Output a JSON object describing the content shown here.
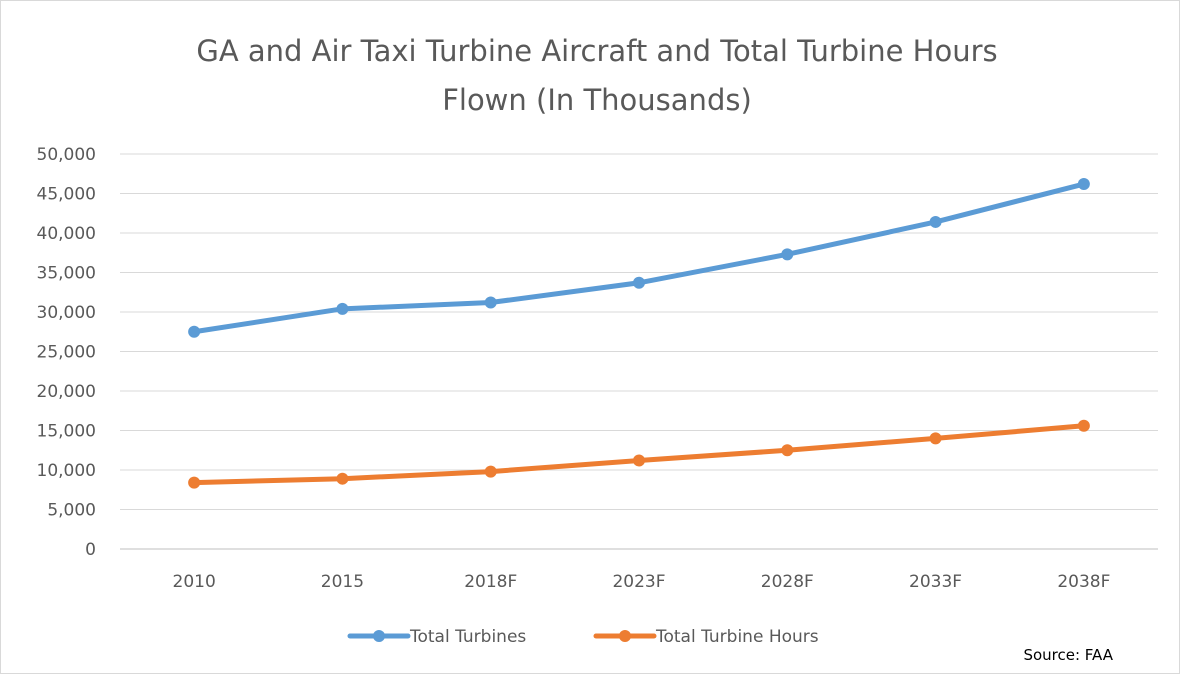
{
  "chart_data": {
    "type": "line",
    "title_lines": [
      "GA and Air Taxi Turbine Aircraft and Total Turbine Hours",
      "Flown (In Thousands)"
    ],
    "categories": [
      "2010",
      "2015",
      "2018F",
      "2023F",
      "2028F",
      "2033F",
      "2038F"
    ],
    "y_ticks": [
      "0",
      "5,000",
      "10,000",
      "15,000",
      "20,000",
      "25,000",
      "30,000",
      "35,000",
      "40,000",
      "45,000",
      "50,000"
    ],
    "ylim": [
      0,
      50000
    ],
    "grid": true,
    "legend_position": "bottom",
    "series": [
      {
        "name": "Total Turbines",
        "color": "#5b9bd5",
        "values": [
          27500,
          30400,
          31200,
          33700,
          37300,
          41400,
          46200
        ]
      },
      {
        "name": "Total Turbine Hours",
        "color": "#ed7d31",
        "values": [
          8400,
          8900,
          9800,
          11200,
          12500,
          14000,
          15600
        ]
      }
    ],
    "annotation": "Source: FAA"
  }
}
